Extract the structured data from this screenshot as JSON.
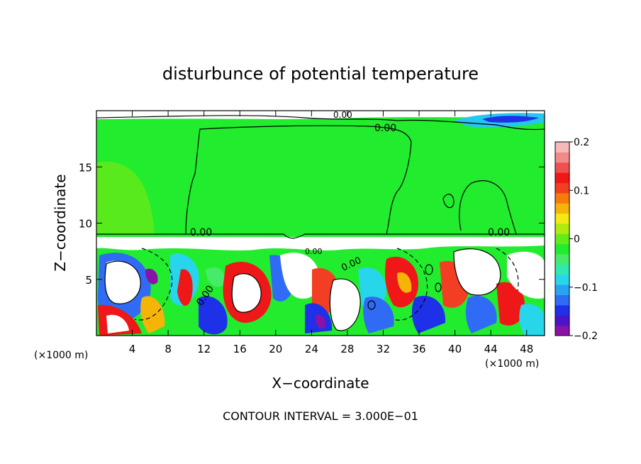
{
  "chart_data": {
    "type": "heatmap",
    "title": "disturbunce of potential temperature",
    "xlabel": "X−coordinate",
    "ylabel": "Z−coordinate",
    "x_unit_left": "(×1000 m)",
    "x_unit_right": "(×1000 m)",
    "xlim": [
      0,
      50
    ],
    "ylim": [
      0,
      20
    ],
    "x_ticks": [
      "4",
      "8",
      "12",
      "16",
      "20",
      "24",
      "28",
      "32",
      "36",
      "40",
      "44",
      "48"
    ],
    "y_ticks": [
      "5",
      "10",
      "15"
    ],
    "x_tick_values": [
      4,
      8,
      12,
      16,
      20,
      24,
      28,
      32,
      36,
      40,
      44,
      48
    ],
    "y_tick_values": [
      5,
      10,
      15
    ],
    "colorbar": {
      "ticks": [
        "0.2",
        "0.1",
        "0",
        "−0.1",
        "−0.2"
      ],
      "tick_values": [
        0.2,
        0.1,
        0,
        -0.1,
        -0.2
      ],
      "range": [
        -0.2,
        0.2
      ],
      "colors": [
        "#8b12a8",
        "#4b14c8",
        "#1e30e8",
        "#2f6bf5",
        "#28a3f2",
        "#27d6ea",
        "#30e8b0",
        "#46eb6a",
        "#22ec2e",
        "#64ec1a",
        "#b0ea10",
        "#f2ea10",
        "#f6b409",
        "#f67a0d",
        "#f23e22",
        "#ef1717",
        "#f05050",
        "#f28a8a",
        "#f6b8b8"
      ]
    },
    "contour_labels": [
      "0.00",
      "0.00",
      "0.00",
      "0.00",
      "0.00",
      "0.00",
      "0.00"
    ],
    "footer": "CONTOUR INTERVAL = 3.000E−01"
  }
}
